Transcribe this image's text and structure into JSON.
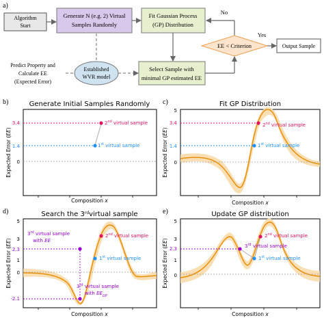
{
  "flowchart": {
    "panel_label": "a)",
    "algorithm_start": "Algorithm Start",
    "generate_line1": "Generate N (e.g. 2) Virtual",
    "generate_line2": "Samples Randomly",
    "fit_line1": "Fit Gaussian Process",
    "fit_line2": "(GP) Distribution",
    "no_label": "No",
    "yes_label": "Yes",
    "criterion": "EE < Criterion",
    "output": "Output Sample",
    "predict_line1": "Predict Property and",
    "predict_line2": "Calculate EE",
    "predict_line3": "(Expected Error)",
    "wvr_line1": "Established",
    "wvr_line2": "WVR model",
    "select_line1": "Select Sample with",
    "select_line2": "minimal GP estimated EE"
  },
  "panels": [
    {
      "label": "b)",
      "title": "Generate Initial Samples Randomly",
      "ylabel": "Expected Error (EE)",
      "xlabel": "Composition x",
      "annotations": [
        "3.4",
        "1.4",
        "2nd virtual sample",
        "1st virtual sample"
      ]
    },
    {
      "label": "c)",
      "title": "Fit GP Distribution",
      "ylabel": "Expected Error (EE)",
      "xlabel": "Composition x",
      "annotations": [
        "3.4",
        "1.4",
        "2nd virtual sample",
        "1st virtual sample"
      ]
    },
    {
      "label": "d)",
      "title": "Search the 3rd virtual sample",
      "ylabel": "Expected Error (EE)",
      "xlabel": "Composition x",
      "annotations": [
        "2.3",
        "-2.1",
        "3rd virtual sample with EE",
        "3rd virtual sample with EE_GP",
        "2nd virtual sample",
        "1st virtual sample"
      ]
    },
    {
      "label": "e)",
      "title": "Update GP distribution",
      "ylabel": "Expected Error (EE)",
      "xlabel": "Composition x",
      "annotations": [
        "2.3",
        "3rd virtual sample",
        "2nd virtual sample",
        "1st virtual sample"
      ]
    }
  ],
  "chart_data": [
    {
      "type": "scatter",
      "title": "Generate Initial Samples Randomly",
      "xlabel": "Composition x",
      "ylabel": "Expected Error (EE)",
      "ylim": [
        -1.0,
        5.0
      ],
      "yticks": [
        0,
        1,
        2,
        3,
        4,
        5
      ],
      "points": [
        {
          "name": "1st virtual sample",
          "x": 0.52,
          "y": 1.4,
          "color": "#1e90ff"
        },
        {
          "name": "2nd virtual sample",
          "x": 0.58,
          "y": 3.4,
          "color": "#e0115f"
        }
      ]
    },
    {
      "type": "line",
      "title": "Fit GP Distribution",
      "xlabel": "Composition x",
      "ylabel": "Expected Error (EE)",
      "ylim": [
        -3.0,
        5.0
      ],
      "yticks": [
        0,
        1,
        2,
        3,
        4,
        5
      ],
      "points": [
        {
          "name": "1st virtual sample",
          "x": 0.55,
          "y": 1.4
        },
        {
          "name": "2nd virtual sample",
          "x": 0.59,
          "y": 3.4
        }
      ]
    },
    {
      "type": "line",
      "title": "Search the 3rd virtual sample",
      "xlabel": "Composition x",
      "ylabel": "Expected Error (EE)",
      "ylim": [
        -3.0,
        5.0
      ],
      "yticks": [
        0,
        1,
        2,
        3,
        4,
        5
      ],
      "points": [
        {
          "name": "1st virtual sample",
          "x": 0.47,
          "y": 1.4
        },
        {
          "name": "2nd virtual sample",
          "x": 0.5,
          "y": 3.4
        },
        {
          "name": "3rd virtual sample with EE",
          "x": 0.38,
          "y": 2.3
        },
        {
          "name": "3rd virtual sample with EE_GP",
          "x": 0.38,
          "y": -2.1
        }
      ]
    },
    {
      "type": "line",
      "title": "Update GP distribution",
      "xlabel": "Composition x",
      "ylabel": "Expected Error (EE)",
      "ylim": [
        -1.5,
        5.0
      ],
      "yticks": [
        0,
        1,
        2,
        3,
        4,
        5
      ],
      "points": [
        {
          "name": "1st virtual sample",
          "x": 0.55,
          "y": 1.4
        },
        {
          "name": "2nd virtual sample",
          "x": 0.6,
          "y": 3.4
        },
        {
          "name": "3rd virtual sample",
          "x": 0.47,
          "y": 2.3
        }
      ]
    }
  ],
  "colors": {
    "start_fill": "#e8e8e8",
    "generate_fill": "#d8c8ec",
    "fit_fill": "#e6f0cf",
    "criterion_fill": "#fde4cc",
    "criterion_stroke": "#f0a050",
    "select_fill": "#e6f0cf",
    "wvr_fill": "#cfe2ef",
    "gp_line": "#e8900a",
    "gp_band": "#f9d9a8",
    "sample1": "#1e90ff",
    "sample2": "#e0115f",
    "sample3": "#9b00d3"
  }
}
